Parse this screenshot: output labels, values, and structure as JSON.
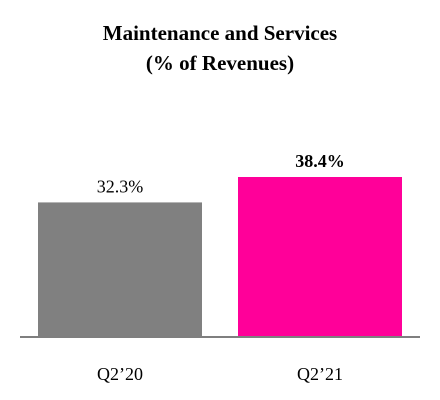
{
  "chart_data": {
    "type": "bar",
    "title": [
      "Maintenance and Services",
      "(% of Revenues)"
    ],
    "categories": [
      "Q2’20",
      "Q2’21"
    ],
    "values": [
      32.3,
      38.4
    ],
    "data_labels": [
      "32.3%",
      "38.4%"
    ],
    "bold_labels": [
      false,
      true
    ],
    "colors": [
      "#808080",
      "#ff0099"
    ],
    "axis_color": "#7f7f7f",
    "ylim": [
      0,
      60
    ],
    "grid": false,
    "legend": "none"
  }
}
